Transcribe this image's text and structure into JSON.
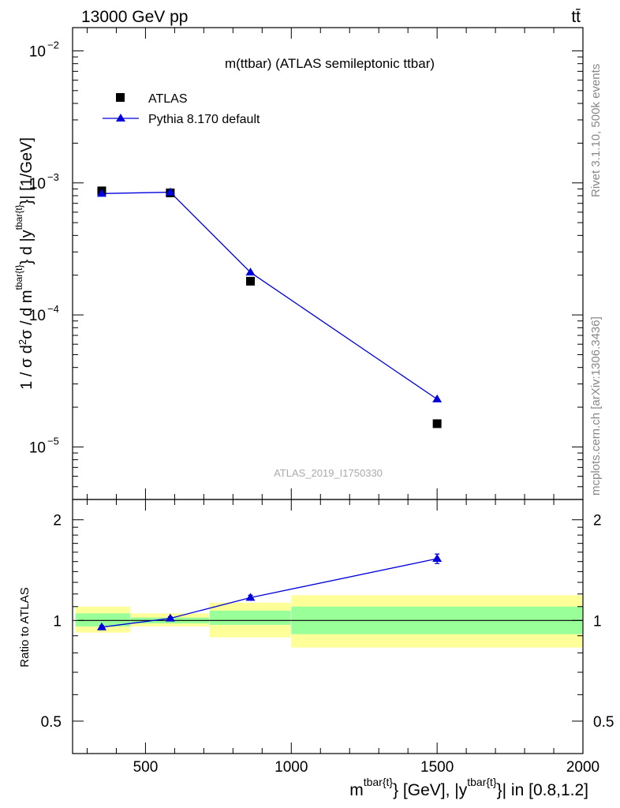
{
  "header": {
    "energy_label": "13000 GeV pp",
    "process_label": "tt̄"
  },
  "side_labels": {
    "rivet": "Rivet 3.1.10,  500k events",
    "mcplots": "mcplots.cern.ch [arXiv:1306.3436]"
  },
  "chart_data": [
    {
      "type": "scatter",
      "panel": "main",
      "title": "m(ttbar) (ATLAS semileptonic ttbar)",
      "watermark": "ATLAS_2019_I1750330",
      "yscale": "log",
      "ylim": [
        4e-06,
        0.015
      ],
      "xlim": [
        250,
        2000
      ],
      "ylabel": "1 / σ d²σ / d m^{tbar{t}} d |y^{tbar{t}}| [1/GeV]",
      "y_ticks": [
        {
          "value": 1e-05,
          "label": "10",
          "exp": "−5"
        },
        {
          "value": 0.0001,
          "label": "10",
          "exp": "−4"
        },
        {
          "value": 0.001,
          "label": "10",
          "exp": "−3"
        },
        {
          "value": 0.01,
          "label": "10",
          "exp": "−2"
        }
      ],
      "legend_position": "top-left",
      "series": [
        {
          "name": "ATLAS",
          "marker": "square",
          "color": "#000000",
          "x": [
            350,
            585,
            860,
            1500
          ],
          "y": [
            0.00087,
            0.00084,
            0.00018,
            1.5e-05
          ]
        },
        {
          "name": "Pythia 8.170 default",
          "marker": "triangle",
          "color": "#0000dd",
          "x": [
            350,
            585,
            860,
            1500
          ],
          "y": [
            0.00083,
            0.00085,
            0.00021,
            2.3e-05
          ]
        }
      ]
    },
    {
      "type": "line",
      "panel": "ratio",
      "ylabel": "Ratio to ATLAS",
      "xlabel": "m^{tbar{t}} [GeV], |y^{tbar{t}}| in [0.8,1.2]",
      "xlim": [
        250,
        2000
      ],
      "ylim": [
        0.4,
        2.3
      ],
      "x_ticks": [
        500,
        1000,
        1500,
        2000
      ],
      "y_ticks": [
        0.5,
        1,
        2
      ],
      "reference_line": 1,
      "uncertainty_bands": [
        {
          "x_from": 250,
          "x_to": 450,
          "outer": [
            0.92,
            1.1
          ],
          "inner": [
            0.96,
            1.05
          ]
        },
        {
          "x_from": 450,
          "x_to": 720,
          "outer": [
            0.96,
            1.05
          ],
          "inner": [
            0.98,
            1.02
          ]
        },
        {
          "x_from": 720,
          "x_to": 1000,
          "outer": [
            0.89,
            1.13
          ],
          "inner": [
            0.97,
            1.07
          ]
        },
        {
          "x_from": 1000,
          "x_to": 2000,
          "outer": [
            0.83,
            1.19
          ],
          "inner": [
            0.91,
            1.1
          ]
        }
      ],
      "series": [
        {
          "name": "Pythia 8.170 default / ATLAS",
          "color": "#0000dd",
          "x": [
            350,
            585,
            860,
            1500
          ],
          "y": [
            0.955,
            1.015,
            1.17,
            1.53
          ],
          "err": [
            0.01,
            0.01,
            0.02,
            0.05
          ]
        }
      ]
    }
  ],
  "colors": {
    "band_outer": "#ffff99",
    "band_inner": "#99ff99",
    "mc": "#0000dd",
    "data": "#000000",
    "side_text": "#888888"
  }
}
